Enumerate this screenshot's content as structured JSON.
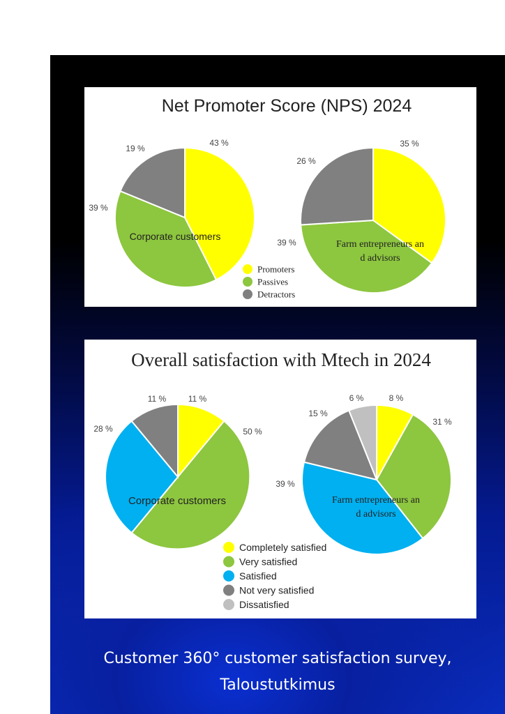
{
  "charts": [
    {
      "title": "Net Promoter Score (NPS) 2024",
      "legend": [
        {
          "label": "Promoters",
          "color": "#ffff00"
        },
        {
          "label": "Passives",
          "color": "#8dc63f"
        },
        {
          "label": "Detractors",
          "color": "#808080"
        }
      ]
    },
    {
      "title": "Overall satisfaction with Mtech in 2024",
      "legend": [
        {
          "label": "Completely satisfied",
          "color": "#ffff00"
        },
        {
          "label": "Very satisfied",
          "color": "#8dc63f"
        },
        {
          "label": "Satisfied",
          "color": "#00b0f0"
        },
        {
          "label": "Not very satisfied",
          "color": "#808080"
        },
        {
          "label": "Dissatisfied",
          "color": "#c0c0c0"
        }
      ]
    }
  ],
  "chart_data": [
    {
      "type": "pie",
      "title": "Net Promoter Score (NPS) 2024",
      "legend_position": "bottom-center",
      "categories": [
        "Promoters",
        "Passives",
        "Detractors"
      ],
      "series": [
        {
          "name": "Corporate customers",
          "values": [
            43,
            39,
            19
          ],
          "labels": [
            "43 %",
            "39 %",
            "19 %"
          ]
        },
        {
          "name": "Farm entrepreneurs and advisors",
          "values": [
            35,
            39,
            26
          ],
          "labels": [
            "35 %",
            "39 %",
            "26 %"
          ]
        }
      ]
    },
    {
      "type": "pie",
      "title": "Overall satisfaction with Mtech in 2024",
      "legend_position": "bottom-center",
      "categories": [
        "Completely satisfied",
        "Very satisfied",
        "Satisfied",
        "Not very satisfied",
        "Dissatisfied"
      ],
      "series": [
        {
          "name": "Corporate customers",
          "values": [
            11,
            50,
            28,
            11,
            0
          ],
          "labels": [
            "11 %",
            "50 %",
            "28 %",
            "11 %",
            ""
          ]
        },
        {
          "name": "Farm entrepreneurs and advisors",
          "values": [
            8,
            31,
            39,
            15,
            6
          ],
          "labels": [
            "8 %",
            "31 %",
            "39 %",
            "15 %",
            "6 %"
          ]
        }
      ]
    }
  ],
  "footer": {
    "line1": "Customer 360° customer satisfaction survey,",
    "line2": "Taloustutkimus"
  }
}
